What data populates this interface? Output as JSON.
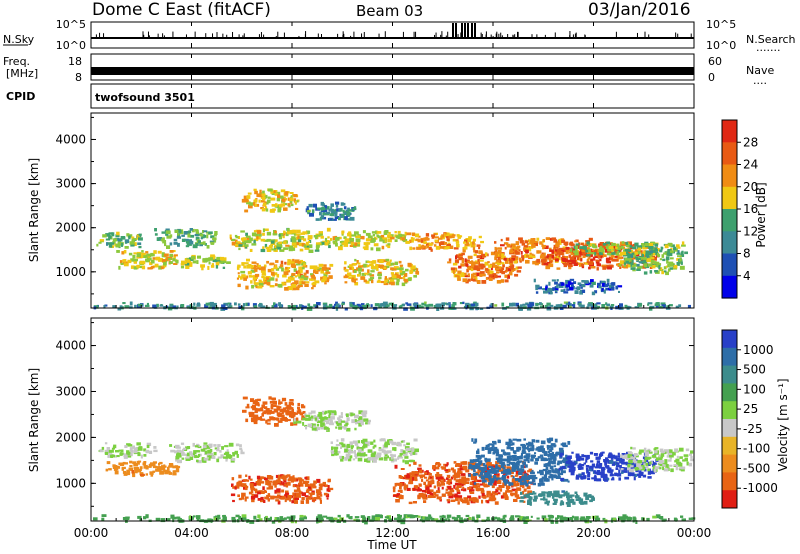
{
  "header": {
    "station": "Dome C East (fitACF)",
    "beam": "Beam 03",
    "date": "03/Jan/2016"
  },
  "nsky_panel": {
    "label": "N.Sky",
    "left_ticks": [
      "10^5",
      "10^0"
    ],
    "right_ticks": [
      "10^5",
      "10^0"
    ],
    "right_label": "N.Search",
    "right_dots": "......."
  },
  "freq_panel": {
    "label_line1": "Freq.",
    "label_line2": "[MHz]",
    "left_ticks": [
      "18",
      "8"
    ],
    "right_ticks": [
      "60",
      "0"
    ],
    "right_label": "Nave",
    "right_dots": "...."
  },
  "cpid_panel": {
    "label": "CPID",
    "value": "twofsound 3501"
  },
  "x_axis": {
    "label": "Time UT",
    "ticks": [
      "00:00",
      "04:00",
      "08:00",
      "12:00",
      "16:00",
      "20:00",
      "00:00"
    ]
  },
  "colors": {
    "power_scale": [
      "#0000e8",
      "#1e50b4",
      "#3c8a96",
      "#3ea06e",
      "#8cc83c",
      "#f0c814",
      "#f08c14",
      "#e85a14",
      "#e02814",
      "#c80a0a"
    ],
    "velocity_scale": [
      "#2840c8",
      "#2e6ea8",
      "#3c8c8c",
      "#44a050",
      "#7cd040",
      "#c8c8c8",
      "#e8b428",
      "#ec8c1e",
      "#e86414",
      "#e01e14"
    ]
  },
  "chart_data": [
    {
      "type": "heatmap",
      "panel": "power",
      "ylabel": "Slant Range [km]",
      "y_ticks": [
        "1000",
        "2000",
        "3000",
        "4000"
      ],
      "ylim": [
        180,
        4600
      ],
      "xlim_hours": [
        0,
        24
      ],
      "colorbar": {
        "label": "Power [dB]",
        "ticks": [
          "4",
          "8",
          "12",
          "16",
          "20",
          "24",
          "28"
        ],
        "range": [
          0,
          32
        ]
      },
      "blobs": [
        {
          "t": [
            0.2,
            2.0
          ],
          "r": [
            1580,
            1920
          ],
          "v": 13
        },
        {
          "t": [
            1.0,
            3.5
          ],
          "r": [
            1100,
            1500
          ],
          "v": 17
        },
        {
          "t": [
            2.5,
            5.0
          ],
          "r": [
            1600,
            2000
          ],
          "v": 12
        },
        {
          "t": [
            3.5,
            5.5
          ],
          "r": [
            1100,
            1400
          ],
          "v": 15
        },
        {
          "t": [
            5.5,
            9.5
          ],
          "r": [
            1500,
            2000
          ],
          "v": 16
        },
        {
          "t": [
            5.8,
            9.5
          ],
          "r": [
            650,
            1300
          ],
          "v": 19
        },
        {
          "t": [
            6.0,
            8.2
          ],
          "r": [
            2400,
            2900
          ],
          "v": 18
        },
        {
          "t": [
            8.5,
            10.5
          ],
          "r": [
            2200,
            2600
          ],
          "v": 9
        },
        {
          "t": [
            9.5,
            12.5
          ],
          "r": [
            1550,
            1950
          ],
          "v": 17
        },
        {
          "t": [
            10.0,
            13.0
          ],
          "r": [
            750,
            1300
          ],
          "v": 18
        },
        {
          "t": [
            12.5,
            15.5
          ],
          "r": [
            1500,
            1900
          ],
          "v": 20
        },
        {
          "t": [
            14.0,
            17.0
          ],
          "r": [
            800,
            1500
          ],
          "v": 22
        },
        {
          "t": [
            16.0,
            20.0
          ],
          "r": [
            1200,
            1800
          ],
          "v": 22
        },
        {
          "t": [
            18.0,
            22.5
          ],
          "r": [
            1100,
            1700
          ],
          "v": 24
        },
        {
          "t": [
            19.0,
            23.8
          ],
          "r": [
            1400,
            1700
          ],
          "v": 14
        },
        {
          "t": [
            21.0,
            23.5
          ],
          "r": [
            1000,
            1500
          ],
          "v": 13
        },
        {
          "t": [
            17.5,
            21.0
          ],
          "r": [
            550,
            850
          ],
          "v": 6
        },
        {
          "t": [
            0.0,
            24.0
          ],
          "r": [
            190,
            330
          ],
          "v": 9
        }
      ]
    },
    {
      "type": "heatmap",
      "panel": "velocity",
      "ylabel": "Slant Range [km]",
      "y_ticks": [
        "1000",
        "2000",
        "3000",
        "4000"
      ],
      "ylim": [
        180,
        4600
      ],
      "xlim_hours": [
        0,
        24
      ],
      "colorbar": {
        "label": "Velocity [m s⁻¹]",
        "ticks": [
          "1000",
          "500",
          "100",
          "25",
          "-25",
          "-100",
          "-500",
          "-1000"
        ],
        "range": [
          -1000,
          1000
        ]
      },
      "blobs": [
        {
          "t": [
            0.2,
            2.5
          ],
          "r": [
            1600,
            1900
          ],
          "v": 0
        },
        {
          "t": [
            0.5,
            3.5
          ],
          "r": [
            1200,
            1500
          ],
          "v": -150
        },
        {
          "t": [
            3.0,
            6.0
          ],
          "r": [
            1500,
            1900
          ],
          "v": 0
        },
        {
          "t": [
            5.5,
            9.5
          ],
          "r": [
            600,
            1200
          ],
          "v": -400
        },
        {
          "t": [
            6.0,
            8.5
          ],
          "r": [
            2300,
            2900
          ],
          "v": -300
        },
        {
          "t": [
            8.0,
            11.0
          ],
          "r": [
            2200,
            2600
          ],
          "v": 0
        },
        {
          "t": [
            9.5,
            13.0
          ],
          "r": [
            1500,
            2000
          ],
          "v": 0
        },
        {
          "t": [
            12.0,
            17.5
          ],
          "r": [
            600,
            1500
          ],
          "v": -400
        },
        {
          "t": [
            15.0,
            19.0
          ],
          "r": [
            1000,
            2000
          ],
          "v": 300
        },
        {
          "t": [
            18.5,
            22.5
          ],
          "r": [
            1100,
            1700
          ],
          "v": 600
        },
        {
          "t": [
            21.0,
            23.9
          ],
          "r": [
            1300,
            1800
          ],
          "v": 0
        },
        {
          "t": [
            17.0,
            20.0
          ],
          "r": [
            550,
            850
          ],
          "v": 150
        },
        {
          "t": [
            0.0,
            24.0
          ],
          "r": [
            190,
            330
          ],
          "v": 40
        }
      ]
    }
  ]
}
